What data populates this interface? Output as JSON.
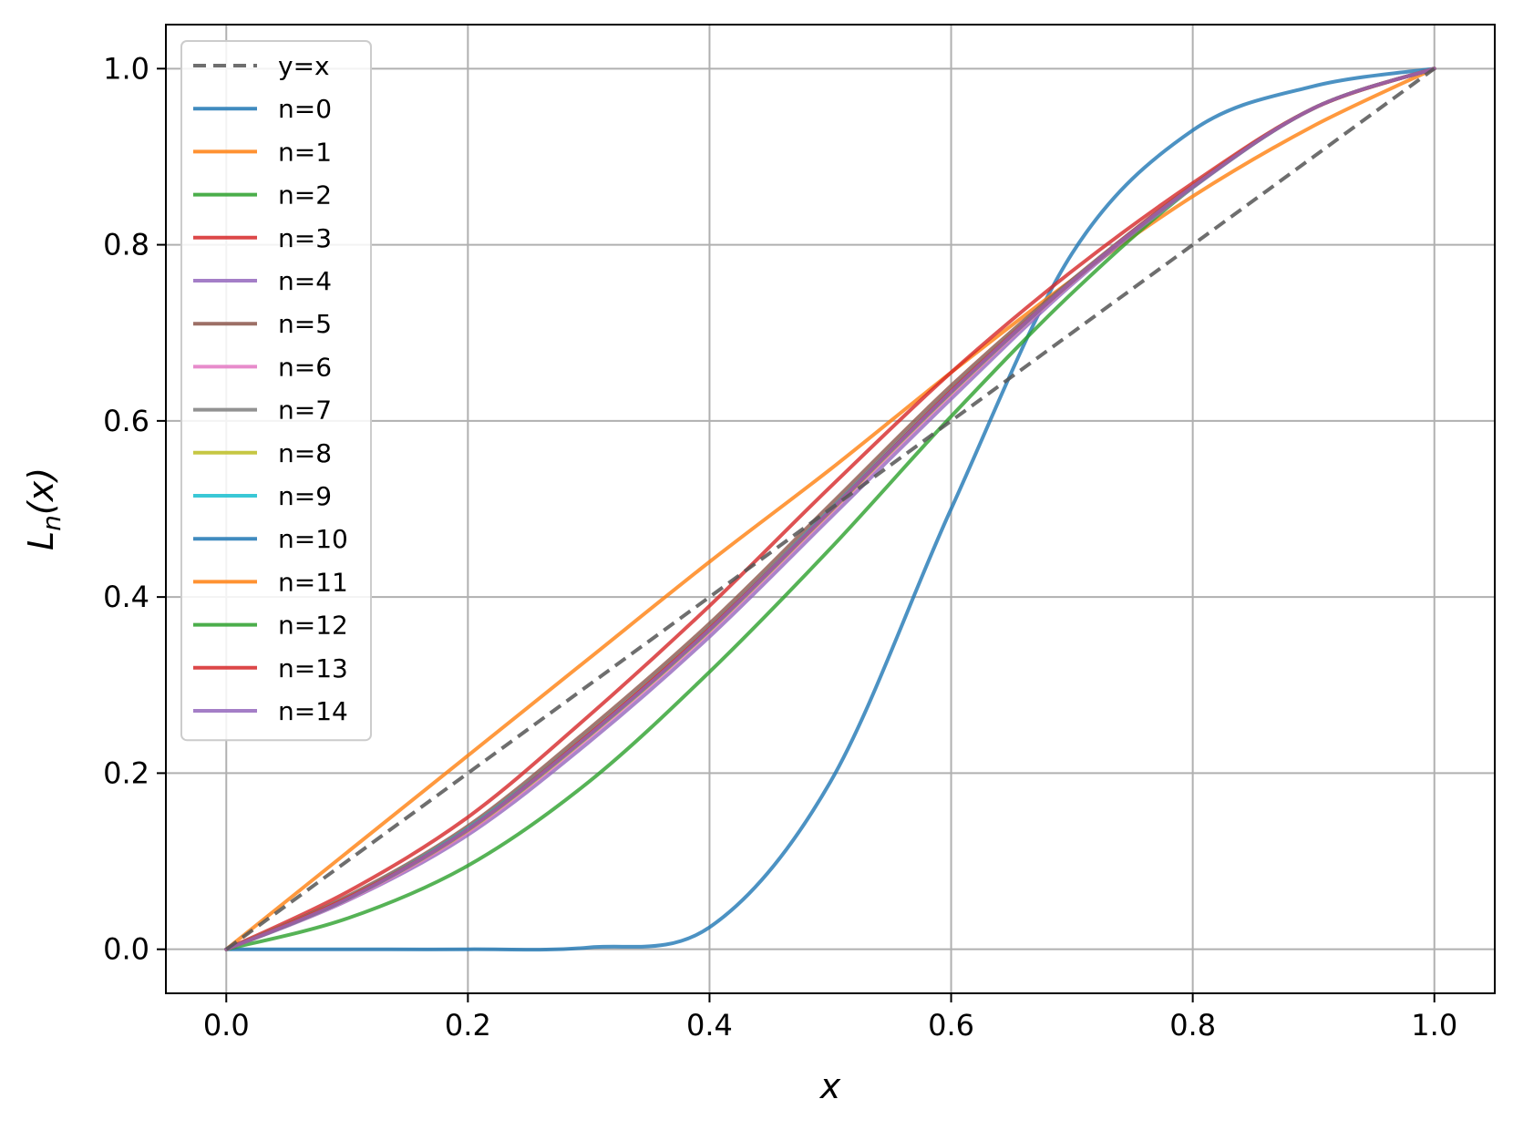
{
  "chart_data": {
    "type": "line",
    "xlabel": "x",
    "ylabel_base": "L",
    "ylabel_sub": "n",
    "ylabel_arg": "(x)",
    "xlim": [
      -0.05,
      1.05
    ],
    "ylim": [
      -0.05,
      1.05
    ],
    "x_ticks": [
      "0.0",
      "0.2",
      "0.4",
      "0.6",
      "0.8",
      "1.0"
    ],
    "y_ticks": [
      "0.0",
      "0.2",
      "0.4",
      "0.6",
      "0.8",
      "1.0"
    ],
    "grid": true,
    "legend_position": "top-left",
    "x": [
      0.0,
      0.1,
      0.2,
      0.3,
      0.4,
      0.5,
      0.6,
      0.7,
      0.8,
      0.9,
      1.0
    ],
    "series": [
      {
        "name": "y=x",
        "color": "#555555",
        "dashed": true,
        "values": [
          0.0,
          0.1,
          0.2,
          0.3,
          0.4,
          0.5,
          0.6,
          0.7,
          0.8,
          0.9,
          1.0
        ]
      },
      {
        "name": "n=0",
        "color": "#1f77b4",
        "values": [
          0.0,
          0.0,
          0.0,
          0.002,
          0.025,
          0.19,
          0.5,
          0.79,
          0.93,
          0.98,
          1.0
        ]
      },
      {
        "name": "n=1",
        "color": "#ff7f0e",
        "values": [
          0.0,
          0.11,
          0.22,
          0.33,
          0.44,
          0.545,
          0.655,
          0.76,
          0.855,
          0.935,
          1.0
        ]
      },
      {
        "name": "n=2",
        "color": "#2ca02c",
        "values": [
          0.0,
          0.035,
          0.095,
          0.19,
          0.315,
          0.455,
          0.605,
          0.745,
          0.865,
          0.955,
          1.0
        ]
      },
      {
        "name": "n=3",
        "color": "#d62728",
        "values": [
          0.0,
          0.065,
          0.15,
          0.265,
          0.39,
          0.525,
          0.655,
          0.77,
          0.87,
          0.955,
          1.0
        ]
      },
      {
        "name": "n=4",
        "color": "#9467bd",
        "values": [
          0.0,
          0.055,
          0.13,
          0.235,
          0.355,
          0.49,
          0.625,
          0.755,
          0.865,
          0.955,
          1.0
        ]
      },
      {
        "name": "n=5",
        "color": "#8c564b",
        "values": [
          0.0,
          0.06,
          0.14,
          0.25,
          0.37,
          0.505,
          0.64,
          0.76,
          0.867,
          0.955,
          1.0
        ]
      },
      {
        "name": "n=6",
        "color": "#e377c2",
        "values": [
          0.0,
          0.056,
          0.133,
          0.24,
          0.36,
          0.495,
          0.63,
          0.757,
          0.866,
          0.955,
          1.0
        ]
      },
      {
        "name": "n=7",
        "color": "#7f7f7f",
        "values": [
          0.0,
          0.059,
          0.138,
          0.246,
          0.366,
          0.5,
          0.636,
          0.759,
          0.867,
          0.955,
          1.0
        ]
      },
      {
        "name": "n=8",
        "color": "#bcbd22",
        "values": [
          0.0,
          0.057,
          0.135,
          0.242,
          0.362,
          0.497,
          0.632,
          0.758,
          0.866,
          0.955,
          1.0
        ]
      },
      {
        "name": "n=9",
        "color": "#17becf",
        "values": [
          0.0,
          0.058,
          0.137,
          0.244,
          0.364,
          0.499,
          0.634,
          0.758,
          0.867,
          0.955,
          1.0
        ]
      },
      {
        "name": "n=10",
        "color": "#1f77b4",
        "values": [
          0.0,
          0.057,
          0.136,
          0.243,
          0.363,
          0.498,
          0.633,
          0.758,
          0.866,
          0.955,
          1.0
        ]
      },
      {
        "name": "n=11",
        "color": "#ff7f0e",
        "values": [
          0.0,
          0.058,
          0.136,
          0.244,
          0.364,
          0.498,
          0.634,
          0.758,
          0.867,
          0.955,
          1.0
        ]
      },
      {
        "name": "n=12",
        "color": "#2ca02c",
        "values": [
          0.0,
          0.057,
          0.136,
          0.243,
          0.363,
          0.498,
          0.633,
          0.758,
          0.866,
          0.955,
          1.0
        ]
      },
      {
        "name": "n=13",
        "color": "#d62728",
        "values": [
          0.0,
          0.058,
          0.136,
          0.244,
          0.364,
          0.498,
          0.634,
          0.758,
          0.867,
          0.955,
          1.0
        ]
      },
      {
        "name": "n=14",
        "color": "#9467bd",
        "values": [
          0.0,
          0.057,
          0.136,
          0.243,
          0.363,
          0.498,
          0.633,
          0.758,
          0.866,
          0.955,
          1.0
        ]
      }
    ]
  }
}
